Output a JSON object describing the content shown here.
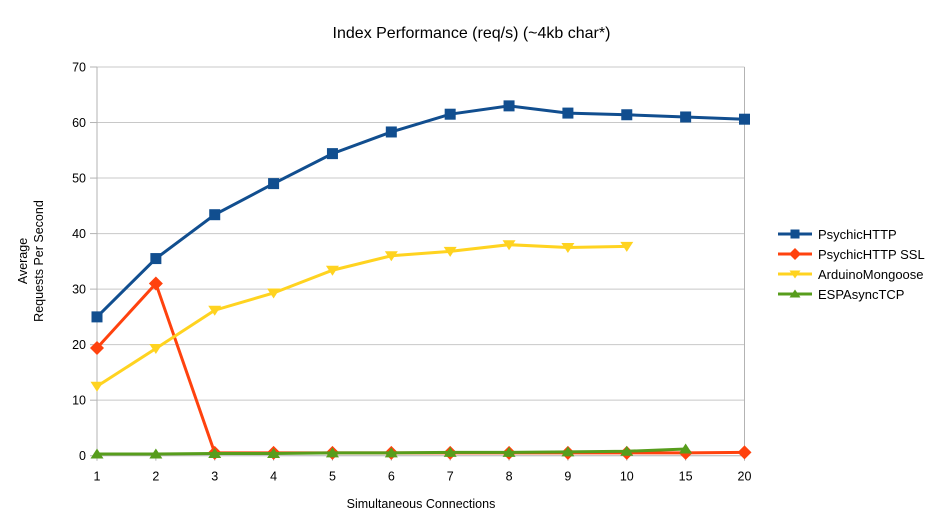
{
  "chart_data": {
    "type": "line",
    "title": "Index Performance (req/s) (~4kb char*)",
    "xlabel": "Simultaneous Connections",
    "ylabel": "Average Requests Per Second",
    "ylabel_lines": [
      "Average",
      "Requests Per Second"
    ],
    "categories": [
      "1",
      "2",
      "3",
      "4",
      "5",
      "6",
      "7",
      "8",
      "9",
      "10",
      "15",
      "20"
    ],
    "ylim": [
      0,
      70
    ],
    "yticks": [
      0,
      10,
      20,
      30,
      40,
      50,
      60,
      70
    ],
    "grid": "horizontal",
    "legend_position": "right",
    "axis_color": "#b3b3b3",
    "grid_color": "#c8c8c8",
    "background_color": "#ffffff",
    "series": [
      {
        "name": "PsychicHTTP",
        "color": "#114e8f",
        "marker": "square",
        "values": [
          25,
          35.5,
          43.4,
          49,
          54.4,
          58.3,
          61.5,
          63,
          61.7,
          61.4,
          61,
          60.6
        ]
      },
      {
        "name": "PsychicHTTP SSL",
        "color": "#ff420e",
        "marker": "diamond",
        "values": [
          19.4,
          31,
          0.5,
          0.5,
          0.5,
          0.5,
          0.5,
          0.5,
          0.5,
          0.5,
          0.5,
          0.6
        ]
      },
      {
        "name": "ArduinoMongoose",
        "color": "#ffd320",
        "marker": "triangle-down",
        "values": [
          12.5,
          19.3,
          26.2,
          29.3,
          33.4,
          36,
          36.8,
          38,
          37.5,
          37.7
        ]
      },
      {
        "name": "ESPAsyncTCP",
        "color": "#579d1c",
        "marker": "triangle-up",
        "values": [
          0.3,
          0.3,
          0.4,
          0.4,
          0.5,
          0.5,
          0.6,
          0.6,
          0.7,
          0.8,
          1.2
        ]
      }
    ]
  }
}
